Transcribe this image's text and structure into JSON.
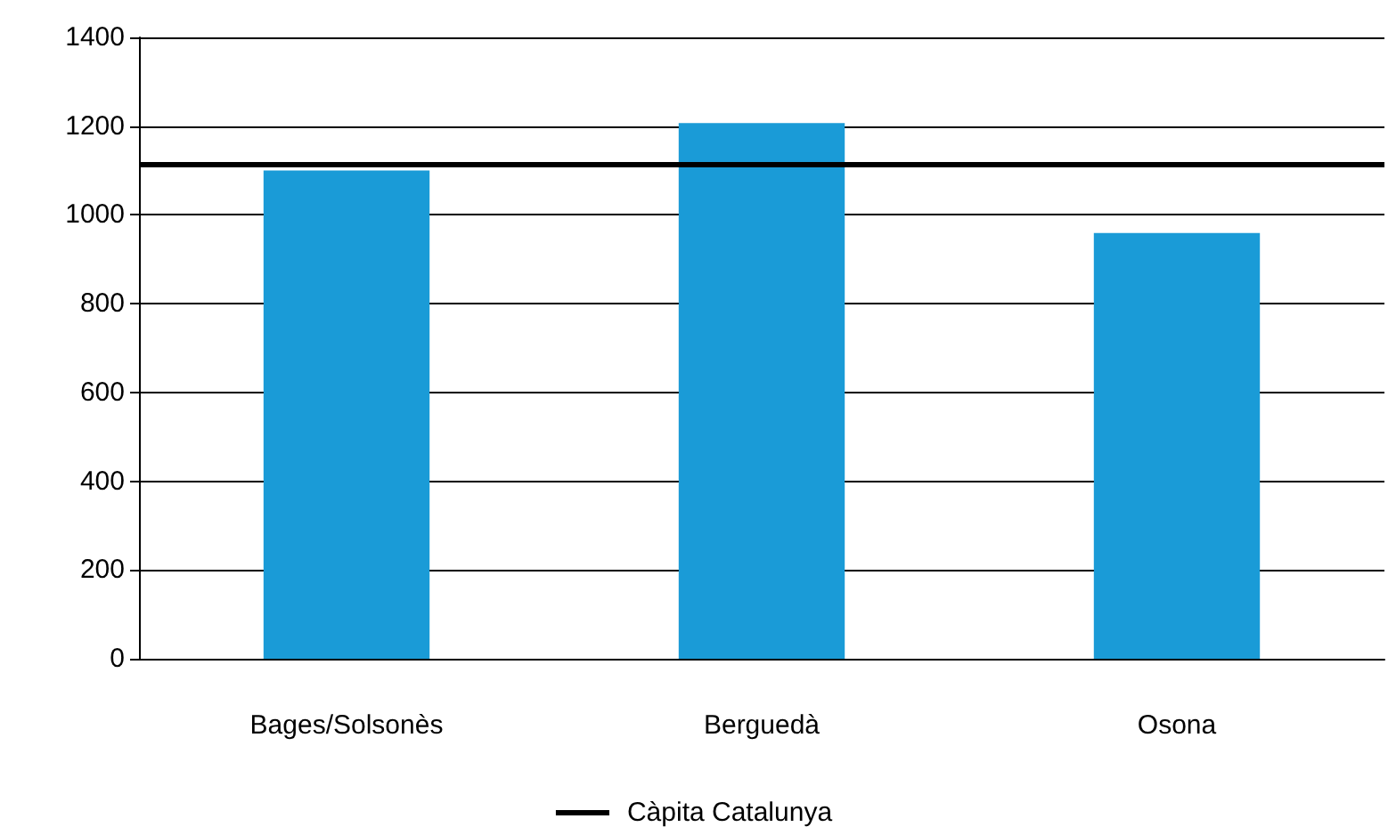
{
  "chart_data": {
    "type": "bar",
    "categories": [
      "Bages/Solsonès",
      "Berguedà",
      "Osona"
    ],
    "values": [
      1100,
      1207,
      959
    ],
    "color": "#1a9bd7",
    "ylim": [
      0,
      1400
    ],
    "yticks": [
      0,
      200,
      400,
      600,
      800,
      1000,
      1200,
      1400
    ],
    "grid": "y",
    "legend": "bottom",
    "ref_lines": [
      {
        "axis": "y",
        "value": 1113,
        "label": "Càpita Catalunya",
        "color": "#000000",
        "line_style": "solid"
      }
    ]
  }
}
